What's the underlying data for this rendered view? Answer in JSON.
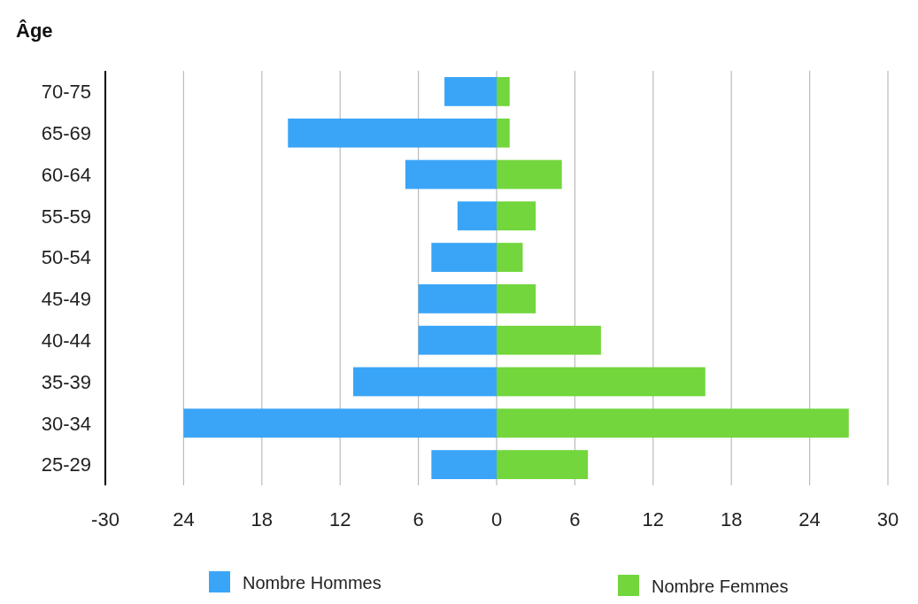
{
  "chart_data": {
    "type": "bar",
    "orientation": "horizontal",
    "stacked": true,
    "ylabel": "Âge",
    "categories": [
      "70-75",
      "65-69",
      "60-64",
      "55-59",
      "50-54",
      "45-49",
      "40-44",
      "35-39",
      "30-34",
      "25-29"
    ],
    "series": [
      {
        "name": "Nombre Hommes",
        "color": "#3aa5f7",
        "values": [
          -4,
          -16,
          -7,
          -3,
          -5,
          -6,
          -6,
          -11,
          -24,
          -5
        ]
      },
      {
        "name": "Nombre Femmes",
        "color": "#72d63c",
        "values": [
          1,
          1,
          5,
          3,
          2,
          3,
          8,
          16,
          27,
          7
        ]
      }
    ],
    "xlim": [
      -30,
      30
    ],
    "xticks": [
      {
        "value": -30,
        "label": "-30"
      },
      {
        "value": -24,
        "label": "24"
      },
      {
        "value": -18,
        "label": "18"
      },
      {
        "value": -12,
        "label": "12"
      },
      {
        "value": -6,
        "label": "6"
      },
      0,
      6,
      12,
      18,
      24,
      30
    ],
    "grid": "x",
    "legend": "bottom"
  }
}
